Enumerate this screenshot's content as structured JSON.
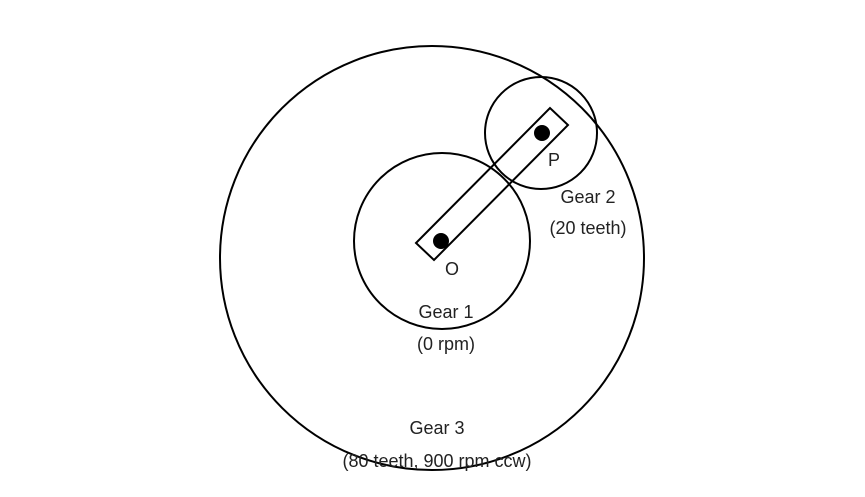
{
  "labels": {
    "pivot_o": "O",
    "pivot_p": "P",
    "gear1_name": "Gear 1",
    "gear1_detail": "(0 rpm)",
    "gear2_name": "Gear 2",
    "gear2_detail": "(20 teeth)",
    "gear3_name": "Gear 3",
    "gear3_detail": "(80 teeth, 900 rpm ccw)"
  },
  "colors": {
    "line": "#000000",
    "text": "#222222",
    "background": "#ffffff"
  }
}
